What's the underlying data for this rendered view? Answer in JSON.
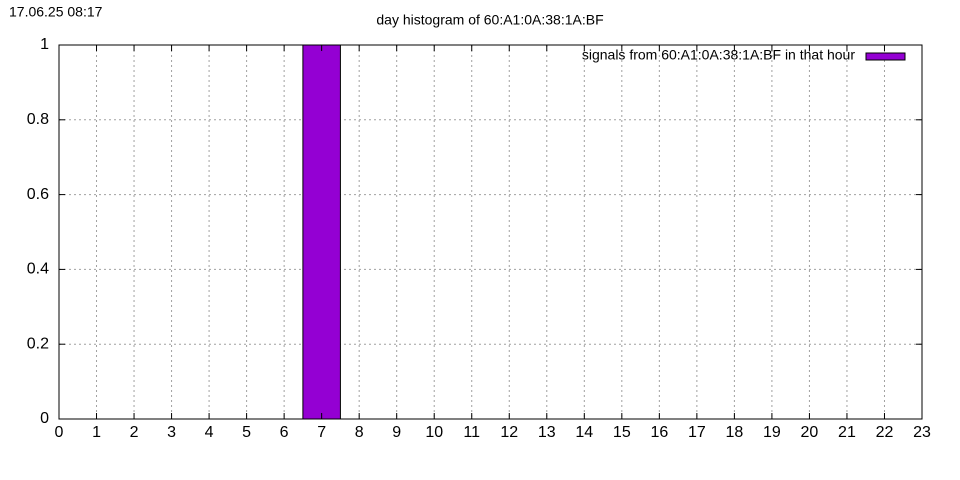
{
  "timestamp": "17.06.25 08:17",
  "chart_data": {
    "type": "bar",
    "title": "day histogram of 60:A1:0A:38:1A:BF",
    "x": [
      0,
      1,
      2,
      3,
      4,
      5,
      6,
      7,
      8,
      9,
      10,
      11,
      12,
      13,
      14,
      15,
      16,
      17,
      18,
      19,
      20,
      21,
      22,
      23
    ],
    "series": [
      {
        "name": "signals from 60:A1:0A:38:1A:BF in that hour",
        "color": "#9400d3",
        "values": [
          0,
          0,
          0,
          0,
          0,
          0,
          0,
          1,
          0,
          0,
          0,
          0,
          0,
          0,
          0,
          0,
          0,
          0,
          0,
          0,
          0,
          0,
          0,
          0
        ]
      }
    ],
    "xlim": [
      0,
      23
    ],
    "xticks": [
      0,
      1,
      2,
      3,
      4,
      5,
      6,
      7,
      8,
      9,
      10,
      11,
      12,
      13,
      14,
      15,
      16,
      17,
      18,
      19,
      20,
      21,
      22,
      23
    ],
    "ylim": [
      0,
      1
    ],
    "yticks": [
      0,
      0.2,
      0.4,
      0.6,
      0.8,
      1
    ],
    "grid": true,
    "legend": "top-right"
  }
}
